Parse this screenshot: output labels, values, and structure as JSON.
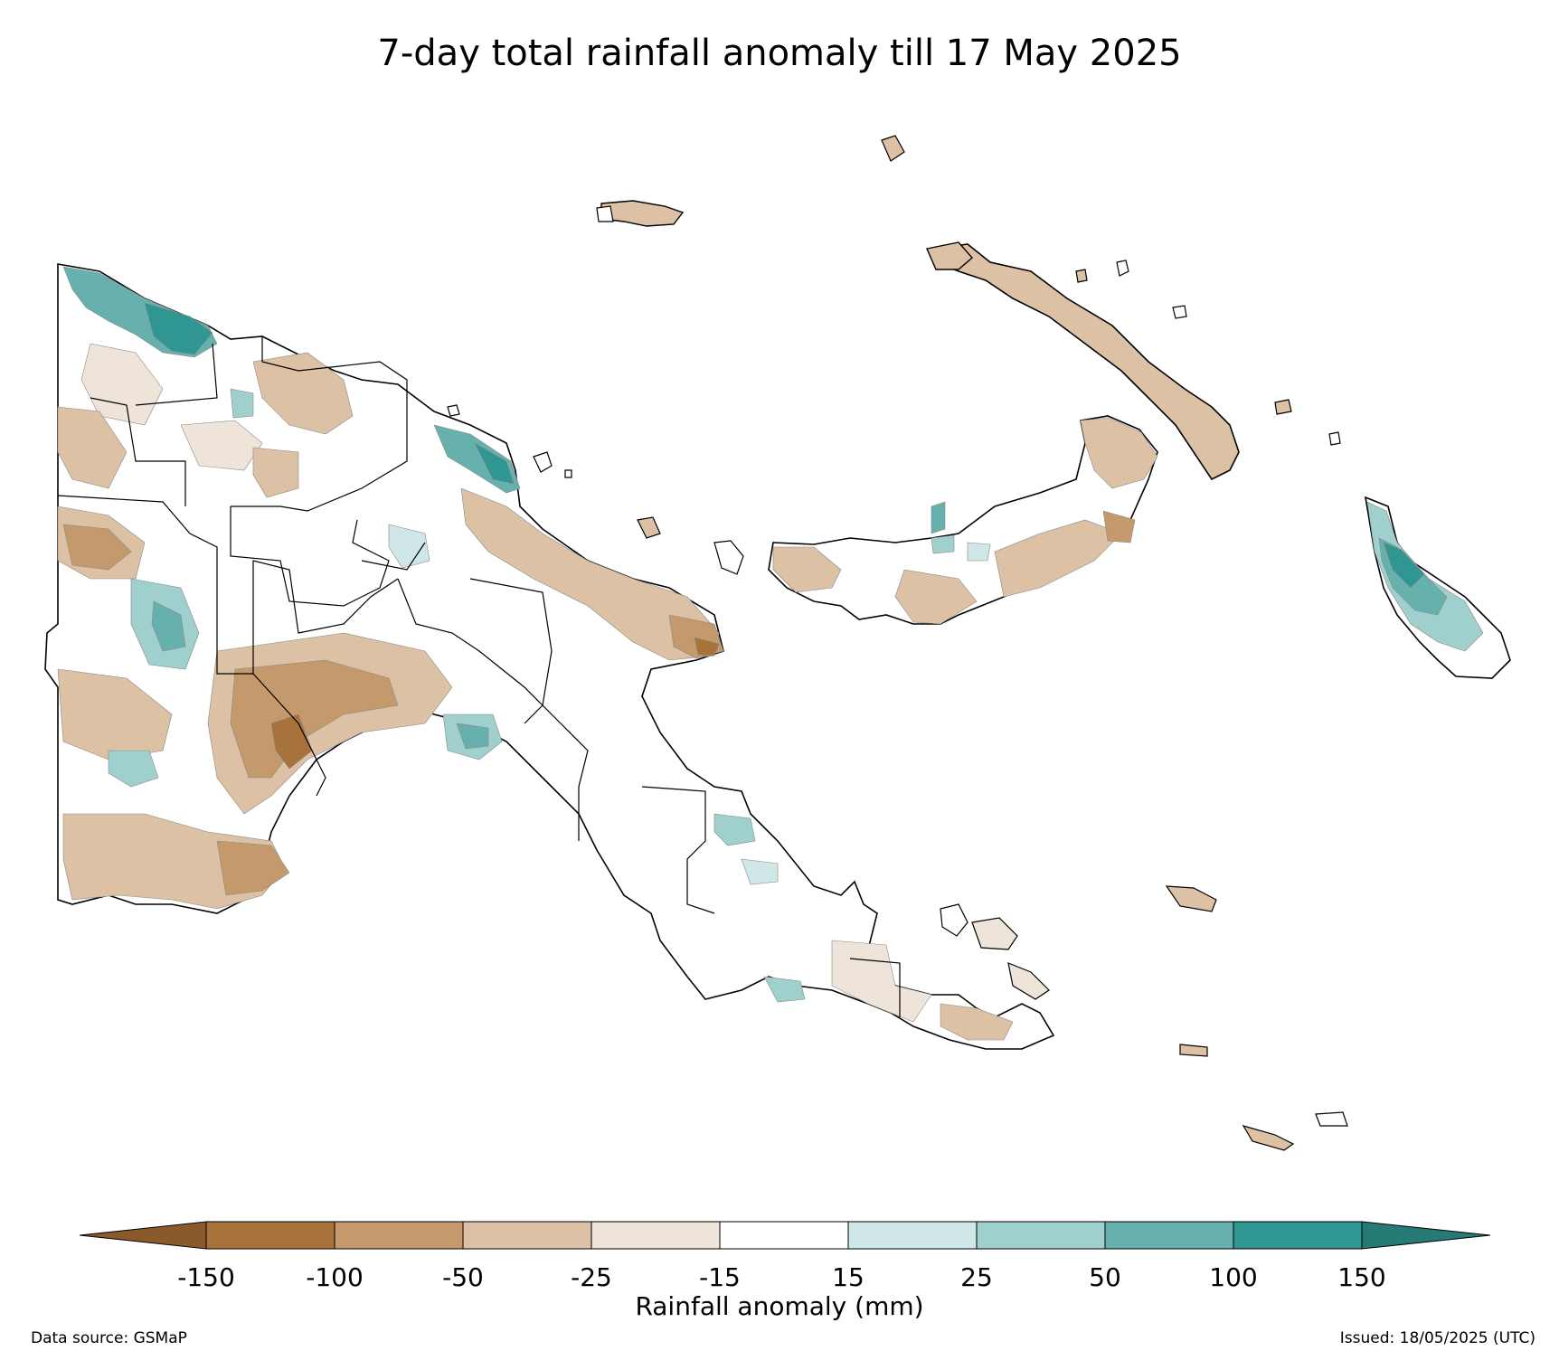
{
  "title": "7-day total rainfall anomaly till 17 May 2025",
  "colorbar": {
    "label": "Rainfall anomaly (mm)",
    "ticks": [
      "-150",
      "-100",
      "-50",
      "-25",
      "-15",
      "15",
      "25",
      "50",
      "100",
      "150"
    ],
    "bins": [
      {
        "range": "< -150",
        "color": "#8b5a2b"
      },
      {
        "range": "-150 to -100",
        "color": "#a8733a"
      },
      {
        "range": "-100 to -50",
        "color": "#c49a6c"
      },
      {
        "range": "-50 to -25",
        "color": "#dcc1a4"
      },
      {
        "range": "-25 to -15",
        "color": "#efe4d9"
      },
      {
        "range": "-15 to 15",
        "color": "#ffffff"
      },
      {
        "range": "15 to 25",
        "color": "#cfe7e6"
      },
      {
        "range": "25 to 50",
        "color": "#9fd0cd"
      },
      {
        "range": "50 to 100",
        "color": "#66b1ad"
      },
      {
        "range": "100 to 150",
        "color": "#2f9691"
      },
      {
        "range": "> 150",
        "color": "#257a76"
      }
    ]
  },
  "footer": {
    "source": "Data source: GSMaP",
    "issued": "Issued: 18/05/2025 (UTC)"
  }
}
